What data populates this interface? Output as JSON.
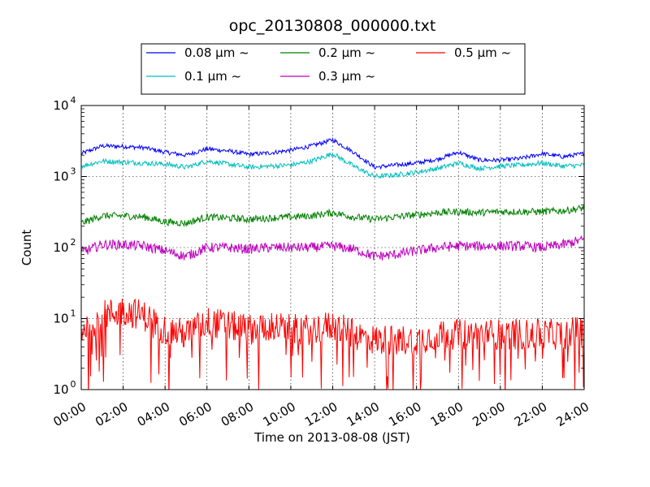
{
  "chart_data": {
    "type": "line",
    "title": "opc_20130808_000000.txt",
    "xlabel": "Time on 2013-08-08 (JST)",
    "ylabel": "Count",
    "y_scale": "log",
    "ylim": [
      1,
      10000
    ],
    "xlim": [
      "00:00",
      "24:00"
    ],
    "x_ticks": [
      "00:00",
      "02:00",
      "04:00",
      "06:00",
      "08:00",
      "10:00",
      "12:00",
      "14:00",
      "16:00",
      "18:00",
      "20:00",
      "22:00",
      "24:00"
    ],
    "y_ticks": [
      {
        "base": "10",
        "exp": "0"
      },
      {
        "base": "10",
        "exp": "1"
      },
      {
        "base": "10",
        "exp": "2"
      },
      {
        "base": "10",
        "exp": "3"
      },
      {
        "base": "10",
        "exp": "4"
      }
    ],
    "grid": true,
    "legend_position": "top",
    "x": [
      "00:00",
      "01:00",
      "02:00",
      "03:00",
      "04:00",
      "05:00",
      "06:00",
      "07:00",
      "08:00",
      "09:00",
      "10:00",
      "11:00",
      "12:00",
      "13:00",
      "14:00",
      "15:00",
      "16:00",
      "17:00",
      "18:00",
      "19:00",
      "20:00",
      "21:00",
      "22:00",
      "23:00",
      "24:00"
    ],
    "series": [
      {
        "name": "0.08 μm ~",
        "color": "#0000ff",
        "values": [
          2100,
          2700,
          2650,
          2550,
          2200,
          2000,
          2450,
          2300,
          2050,
          2150,
          2350,
          2700,
          3300,
          2200,
          1350,
          1450,
          1550,
          1750,
          2200,
          1700,
          1700,
          1800,
          2100,
          1900,
          2100
        ]
      },
      {
        "name": "0.1 μm ~",
        "color": "#00bfbf",
        "values": [
          1400,
          1650,
          1600,
          1550,
          1500,
          1350,
          1650,
          1500,
          1350,
          1400,
          1450,
          1650,
          2100,
          1400,
          1000,
          1050,
          1150,
          1300,
          1550,
          1300,
          1400,
          1450,
          1550,
          1400,
          1450
        ]
      },
      {
        "name": "0.2 μm ~",
        "color": "#008000",
        "values": [
          220,
          280,
          280,
          270,
          230,
          220,
          270,
          260,
          250,
          260,
          270,
          280,
          310,
          270,
          250,
          270,
          290,
          310,
          320,
          310,
          320,
          320,
          320,
          330,
          360
        ]
      },
      {
        "name": "0.3 μm ~",
        "color": "#bf00bf",
        "values": [
          85,
          110,
          110,
          105,
          90,
          75,
          100,
          100,
          95,
          100,
          100,
          100,
          105,
          95,
          75,
          80,
          90,
          100,
          105,
          105,
          105,
          105,
          100,
          110,
          130
        ]
      },
      {
        "name": "0.5 μm ~",
        "color": "#ff0000",
        "values": [
          7,
          11,
          13,
          11,
          7,
          6,
          9,
          8,
          7,
          8,
          7,
          7,
          8,
          6,
          5,
          5,
          5,
          6,
          6,
          6,
          6,
          6,
          6,
          6,
          7
        ]
      }
    ]
  }
}
